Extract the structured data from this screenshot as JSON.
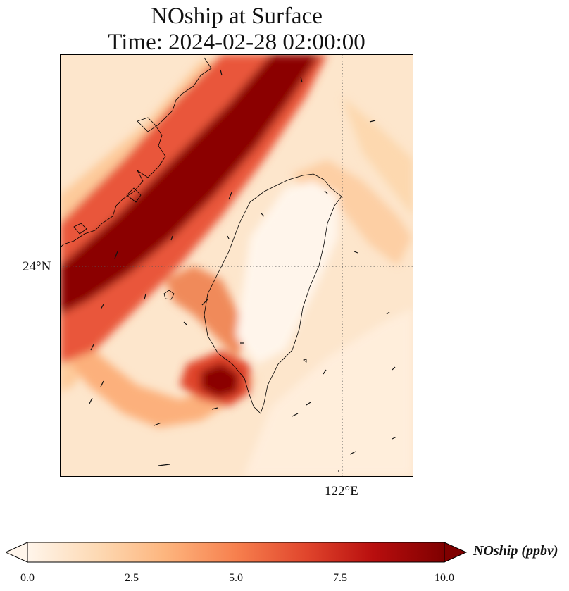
{
  "title_line1": "NOship at Surface",
  "title_line2": "Time: 2024-02-28 02:00:00",
  "lat_label": "24°N",
  "lon_label": "122°E",
  "colorbar": {
    "label": "NOship (ppbv)",
    "min": 0.0,
    "max": 10.0,
    "ticks": [
      "0.0",
      "2.5",
      "5.0",
      "7.5",
      "10.0"
    ],
    "colormap": [
      "#fff5eb",
      "#fdd9b3",
      "#fdb57e",
      "#f7804e",
      "#e0452c",
      "#b80e0e",
      "#7f0000"
    ],
    "extend": "both"
  },
  "map": {
    "field": "NOship",
    "units": "ppbv",
    "gridlines": "dotted",
    "coastline_color": "#000000"
  }
}
